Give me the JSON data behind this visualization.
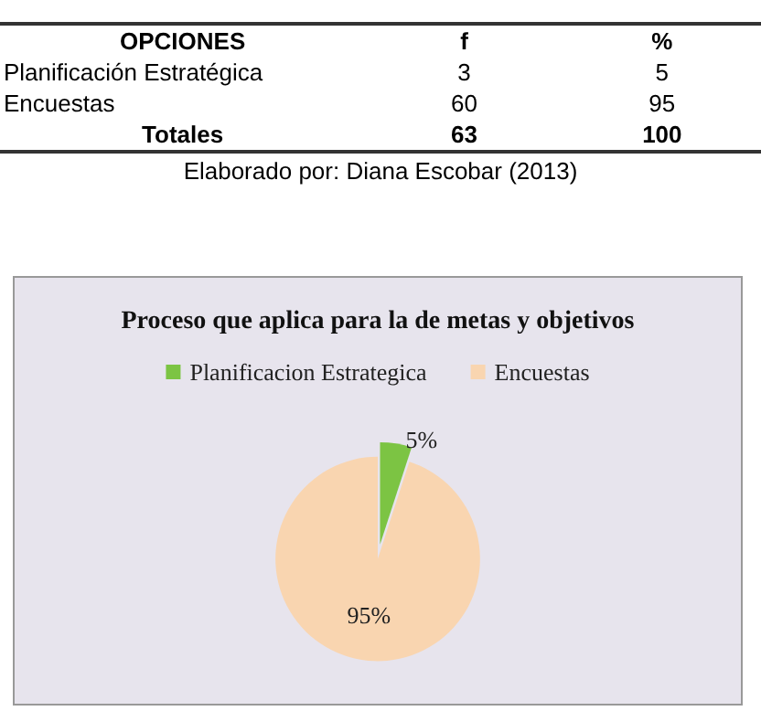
{
  "chart_data": {
    "type": "pie",
    "title": "Proceso que aplica para la de metas y objetivos",
    "categories": [
      "Planificacion Estrategica",
      "Encuestas"
    ],
    "values": [
      5,
      95
    ],
    "colors": [
      "#7cc443",
      "#f9d5b0"
    ],
    "value_labels": [
      "5%",
      "95%"
    ],
    "legend": "top",
    "annotations": [
      "OPCIONES",
      "f",
      "%",
      "Planificación Estratégica",
      "3",
      "5",
      "Encuestas",
      "60",
      "95",
      "Totales",
      "63",
      "100",
      "Elaborado por: Diana Escobar (2013)"
    ]
  }
}
